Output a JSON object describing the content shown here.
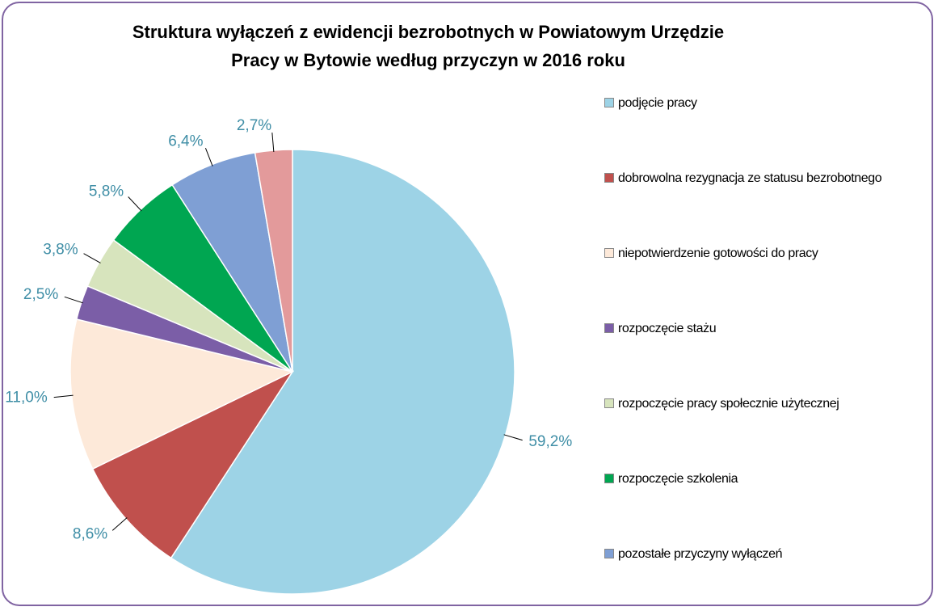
{
  "chart_data": {
    "type": "pie",
    "title": "Struktura wyłączeń z ewidencji bezrobotnych w Powiatowym Urzędzie\nPracy w Bytowie według przyczyn w 2016 roku",
    "categories": [
      "podjęcie pracy",
      "dobrowolna rezygnacja ze statusu bezrobotnego",
      "niepotwierdzenie gotowości do pracy",
      "rozpoczęcie stażu",
      "rozpoczęcie pracy społecznie użytecznej",
      "rozpoczęcie szkolenia",
      "pozostałe przyczyny wyłączeń",
      null
    ],
    "values": [
      59.2,
      8.6,
      11.0,
      2.5,
      3.8,
      5.8,
      6.4,
      2.7
    ],
    "value_labels": [
      "59,2%",
      "8,6%",
      "11,0%",
      "2,5%",
      "3,8%",
      "5,8%",
      "6,4%",
      "2,7%"
    ],
    "colors": [
      "#9dd3e6",
      "#c0504d",
      "#fde9d9",
      "#7b5ea7",
      "#d7e4bd",
      "#00a651",
      "#7f9fd4",
      "#e39a9b"
    ],
    "legend": "right"
  }
}
